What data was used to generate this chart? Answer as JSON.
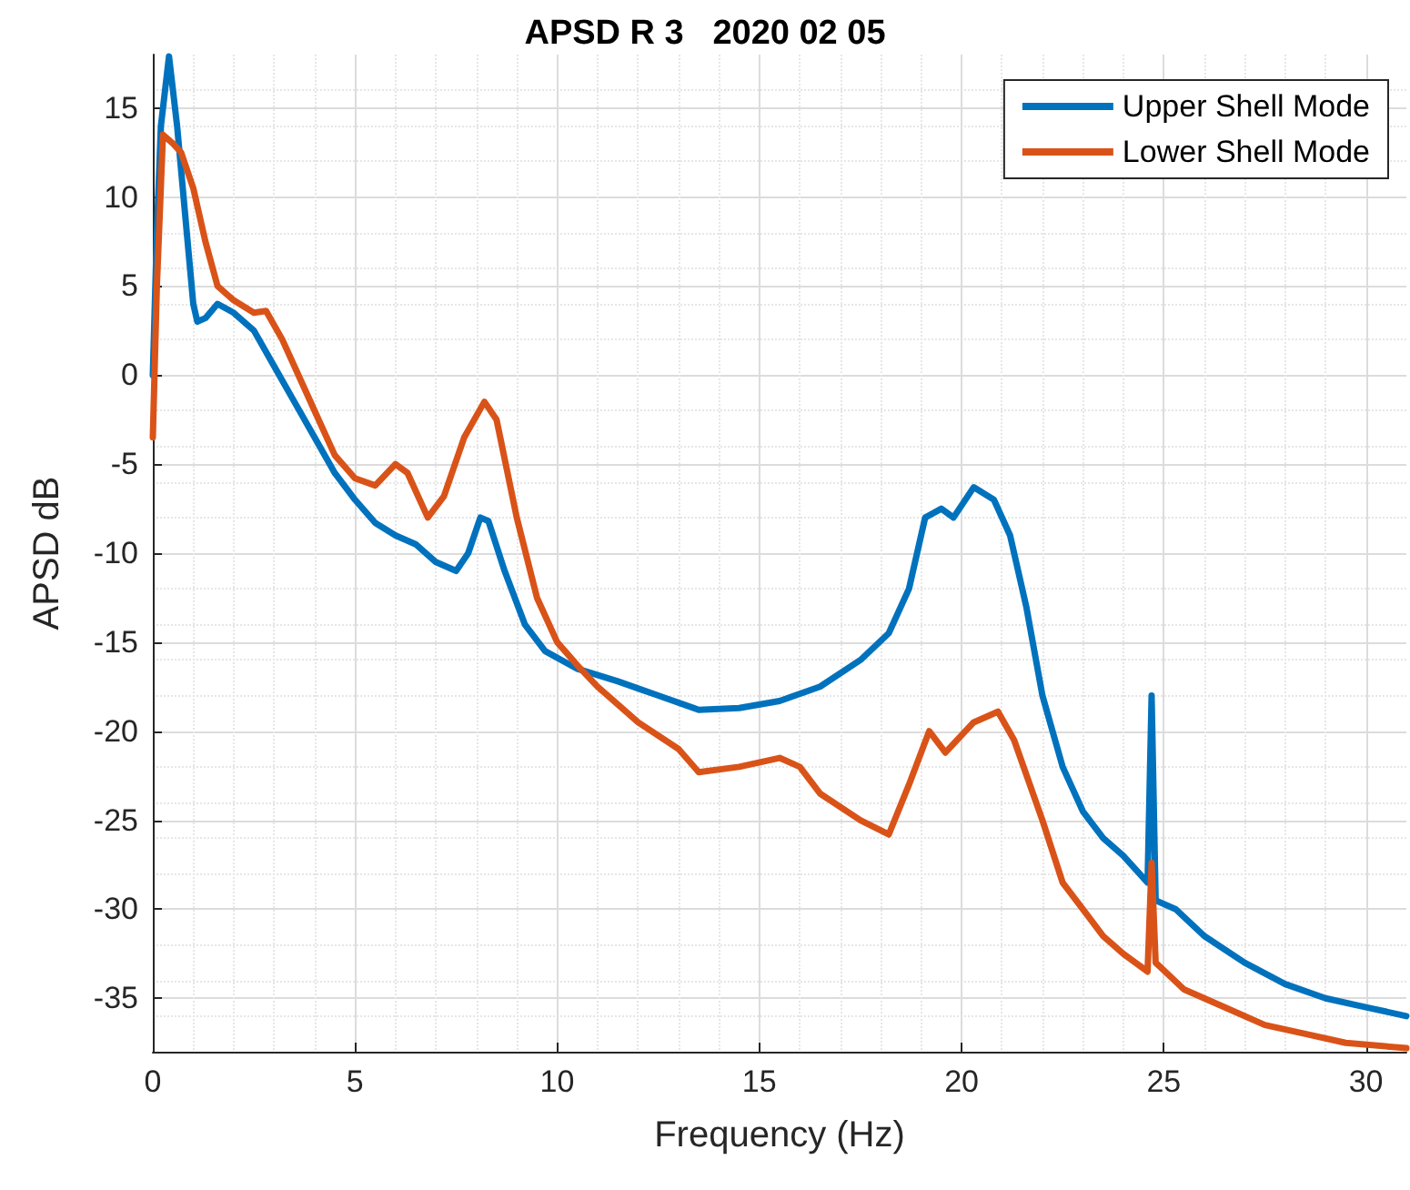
{
  "chart_data": {
    "type": "line",
    "title": "APSD R 3   2020 02 05",
    "xlabel": "Frequency (Hz)",
    "ylabel": "APSD dB",
    "xlim": [
      0,
      31
    ],
    "xticks": [
      0,
      5,
      10,
      15,
      20,
      25,
      30
    ],
    "ylim": [
      -38,
      18
    ],
    "yticks": [
      -35,
      -30,
      -25,
      -20,
      -15,
      -10,
      -5,
      0,
      5,
      10,
      15
    ],
    "grid": true,
    "legend": "top right",
    "marker": "none",
    "line_style": "solid",
    "series": [
      {
        "name": "Upper Shell Mode",
        "color": "#0072bd",
        "x": [
          0,
          0.1,
          0.2,
          0.4,
          0.6,
          0.8,
          1.0,
          1.1,
          1.3,
          1.6,
          2.0,
          2.5,
          3.0,
          3.5,
          4,
          4.5,
          5,
          5.5,
          6,
          6.5,
          7,
          7.5,
          7.8,
          8.1,
          8.3,
          8.7,
          9.2,
          9.7,
          10.5,
          11.5,
          12.5,
          13.5,
          14.5,
          15.5,
          16.5,
          17.5,
          18.2,
          18.7,
          19.1,
          19.5,
          19.8,
          20.3,
          20.8,
          21.2,
          21.6,
          22,
          22.5,
          23,
          23.5,
          24,
          24.6,
          24.7,
          24.8,
          25.3,
          26,
          27,
          28,
          29,
          30,
          31
        ],
        "values": [
          0,
          8,
          14,
          17.9,
          14,
          9,
          4,
          3,
          3.2,
          4,
          3.5,
          2.5,
          0.5,
          -1.5,
          -3.5,
          -5.5,
          -7,
          -8.3,
          -9,
          -9.5,
          -10.5,
          -11,
          -10,
          -8,
          -8.2,
          -11,
          -14,
          -15.5,
          -16.5,
          -17.2,
          -18,
          -18.8,
          -18.7,
          -18.3,
          -17.5,
          -16,
          -14.5,
          -12,
          -8,
          -7.5,
          -8,
          -6.3,
          -7,
          -9,
          -13,
          -18,
          -22,
          -24.5,
          -26,
          -27,
          -28.5,
          -18,
          -29.5,
          -30,
          -31.5,
          -33,
          -34.2,
          -35,
          -35.5,
          -36
        ]
      },
      {
        "name": "Lower Shell Mode",
        "color": "#d95319",
        "x": [
          0,
          0.1,
          0.25,
          0.5,
          0.7,
          1,
          1.3,
          1.6,
          2.0,
          2.5,
          2.8,
          3.2,
          3.6,
          4,
          4.5,
          5,
          5.5,
          6,
          6.3,
          6.8,
          7.2,
          7.7,
          8.2,
          8.5,
          9,
          9.5,
          10,
          10.5,
          11,
          12,
          13,
          13.5,
          14.5,
          15.5,
          16,
          16.5,
          17.5,
          18.2,
          18.7,
          19.2,
          19.6,
          20.3,
          20.9,
          21.3,
          22,
          22.5,
          23,
          23.5,
          24,
          24.6,
          24.7,
          24.8,
          25.5,
          26.5,
          27.5,
          28.5,
          29.5,
          31
        ],
        "values": [
          -3.5,
          5,
          13.5,
          13,
          12.5,
          10.5,
          7.5,
          5,
          4.2,
          3.5,
          3.6,
          2,
          0,
          -2,
          -4.5,
          -5.8,
          -6.2,
          -5,
          -5.5,
          -8,
          -6.8,
          -3.5,
          -1.5,
          -2.5,
          -8,
          -12.5,
          -15,
          -16.3,
          -17.5,
          -19.5,
          -21,
          -22.3,
          -22,
          -21.5,
          -22,
          -23.5,
          -25,
          -25.8,
          -23,
          -20,
          -21.2,
          -19.5,
          -18.9,
          -20.5,
          -25,
          -28.5,
          -30,
          -31.5,
          -32.5,
          -33.5,
          -27.4,
          -33,
          -34.5,
          -35.5,
          -36.5,
          -37,
          -37.5,
          -37.8
        ]
      }
    ]
  }
}
